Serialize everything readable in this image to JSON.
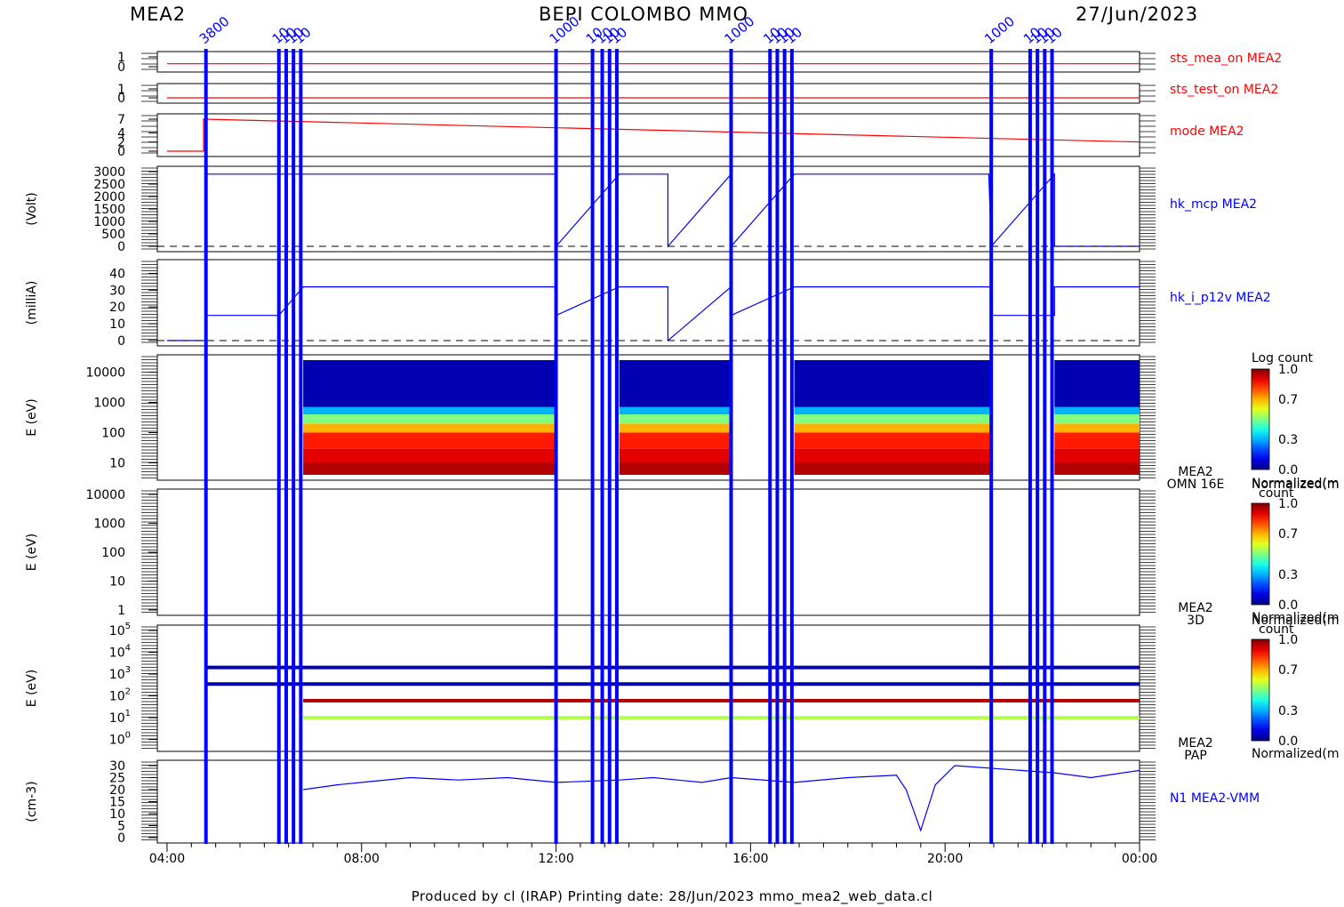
{
  "header": {
    "left_label": "MEA2",
    "title": "BEPI COLOMBO MMO",
    "date": "27/Jun/2023"
  },
  "footer": "Produced by cl (IRAP)    Printing date: 28/Jun/2023    mmo_mea2_web_data.cl",
  "colors": {
    "data_line": "#0000ff",
    "status_line": "#ff0000",
    "frame": "#000000"
  },
  "gap_markers": {
    "note": "Vertical blue bands marking data interruptions, with rotated blue annotations at top",
    "times_hours": [
      4.8,
      6.3,
      6.45,
      6.6,
      6.75,
      12.0,
      12.75,
      12.95,
      13.1,
      13.25,
      15.6,
      16.4,
      16.55,
      16.7,
      16.85,
      20.95,
      21.75,
      21.9,
      22.05,
      22.2
    ],
    "labels": [
      "3800",
      "10",
      "10",
      "10",
      "10",
      "1000",
      "10",
      "10",
      "10",
      "10",
      "1000",
      "10",
      "10",
      "10",
      "10",
      "1000",
      "10",
      "10",
      "10",
      "10"
    ]
  },
  "chart_data": [
    {
      "type": "line",
      "name": "sts_mea_on MEA2",
      "ylim": [
        0,
        1
      ],
      "tick_labels": [
        "0",
        "1"
      ],
      "x": [
        4.0,
        24.0
      ],
      "y": [
        0.3,
        0.3
      ]
    },
    {
      "type": "line",
      "name": "sts_test_on MEA2",
      "ylim": [
        0,
        1
      ],
      "tick_labels": [
        "0",
        "1"
      ],
      "x": [
        4.0,
        24.0
      ],
      "y": [
        0.0,
        0.0
      ]
    },
    {
      "type": "line",
      "name": "mode MEA2",
      "ylim": [
        0,
        7
      ],
      "tick_labels": [
        "0",
        "2",
        "4",
        "7"
      ],
      "x": [
        4.0,
        4.75,
        4.75,
        24.0
      ],
      "y": [
        0,
        0,
        7,
        2
      ]
    },
    {
      "type": "line",
      "name": "hk_mcp MEA2",
      "ylabel": "(Volt)",
      "ylim": [
        0,
        3000
      ],
      "tick_labels": [
        "0",
        "500",
        "1000",
        "1500",
        "2000",
        "2500",
        "3000"
      ],
      "x": [
        4.8,
        12.0,
        12.0,
        13.3,
        14.3,
        14.3,
        15.6,
        15.6,
        16.9,
        20.9,
        20.95,
        22.25,
        22.25,
        24.0
      ],
      "y": [
        2900,
        2900,
        0,
        2900,
        2900,
        0,
        2900,
        0,
        2900,
        2900,
        0,
        2900,
        0,
        0
      ]
    },
    {
      "type": "line",
      "name": "hk_i_p12v MEA2",
      "ylabel": "(milliA)",
      "ylim": [
        0,
        45
      ],
      "tick_labels": [
        "0",
        "10",
        "20",
        "30",
        "40"
      ],
      "x": [
        4.0,
        4.8,
        4.8,
        6.3,
        6.8,
        12.0,
        12.0,
        13.3,
        14.3,
        14.3,
        15.6,
        15.6,
        16.9,
        20.95,
        20.95,
        22.25,
        22.25,
        24.0
      ],
      "y": [
        0,
        0,
        15,
        15,
        32,
        32,
        15,
        32,
        32,
        0,
        32,
        15,
        32,
        32,
        15,
        15,
        32,
        32
      ]
    },
    {
      "type": "heatmap",
      "name": "MEA2 OMN 16E",
      "ylabel": "E (eV)",
      "yscale": "log",
      "ylim": [
        4,
        25000
      ],
      "tick_labels": [
        "10",
        "100",
        "1000",
        "10000"
      ],
      "colorbar": {
        "title": "Log count",
        "ticks": [
          "0.0",
          "0.3",
          "0.7",
          "1.0"
        ]
      },
      "data_intervals": [
        [
          6.8,
          12.0
        ],
        [
          13.3,
          15.6
        ],
        [
          16.9,
          20.95
        ],
        [
          22.25,
          24.0
        ]
      ],
      "energy_bands": [
        {
          "emin": 4,
          "emax": 10,
          "level": 0.95
        },
        {
          "emin": 10,
          "emax": 30,
          "level": 0.9
        },
        {
          "emin": 30,
          "emax": 100,
          "level": 0.85
        },
        {
          "emin": 100,
          "emax": 200,
          "level": 0.7
        },
        {
          "emin": 200,
          "emax": 400,
          "level": 0.5
        },
        {
          "emin": 400,
          "emax": 700,
          "level": 0.3
        },
        {
          "emin": 700,
          "emax": 25000,
          "level": 0.05
        }
      ]
    },
    {
      "type": "heatmap",
      "name": "MEA2 3D",
      "ylabel": "E (eV)",
      "yscale": "log",
      "ylim": [
        1,
        10000
      ],
      "tick_labels": [
        "1",
        "10",
        "100",
        "1000",
        "10000"
      ],
      "colorbar": {
        "title": "Normalized(m",
        "subtitle": "count",
        "ticks": [
          "0.0",
          "0.3",
          "0.7",
          "1.0"
        ]
      }
    },
    {
      "type": "heatmap",
      "name": "MEA2 PAP",
      "ylabel": "E (eV)",
      "yscale": "log",
      "ylim": [
        0.5,
        100000
      ],
      "tick_labels": [
        "10^0",
        "10^1",
        "10^2",
        "10^3",
        "10^4",
        "10^5"
      ],
      "colorbar": {
        "title": "Normalized(m",
        "subtitle": "count",
        "ticks": [
          "0.0",
          "0.3",
          "0.7",
          "1.0"
        ]
      },
      "lines": [
        {
          "energy": 2000,
          "start": 4.8,
          "level": 0.05
        },
        {
          "energy": 350,
          "start": 4.8,
          "level": 0.05
        },
        {
          "energy": 60,
          "start": 6.8,
          "level": 0.95
        },
        {
          "energy": 10,
          "start": 6.8,
          "level": 0.55
        }
      ],
      "colorbar_bottom_label": "Normalized(m"
    },
    {
      "type": "line",
      "name": "N1 MEA2-VMM",
      "ylabel": "(cm-3)",
      "ylim": [
        0,
        30
      ],
      "tick_labels": [
        "0",
        "5",
        "10",
        "15",
        "20",
        "25",
        "30"
      ],
      "x": [
        6.8,
        7.5,
        8.0,
        9.0,
        10.0,
        11.0,
        12.0,
        13.3,
        14.0,
        14.5,
        15.0,
        15.6,
        16.9,
        18.0,
        19.0,
        19.2,
        19.5,
        19.8,
        20.2,
        22.25,
        23.0,
        24.0
      ],
      "y": [
        20,
        22,
        23,
        25,
        24,
        25,
        23,
        24,
        25,
        24,
        23,
        25,
        23,
        25,
        26,
        20,
        3,
        22,
        30,
        27,
        25,
        28
      ]
    }
  ],
  "x_axis": {
    "xlim": [
      3.8,
      24.0
    ],
    "tick_labels": [
      "04:00",
      "08:00",
      "12:00",
      "16:00",
      "20:00",
      "00:00"
    ],
    "tick_hours": [
      4,
      8,
      12,
      16,
      20,
      24
    ]
  }
}
